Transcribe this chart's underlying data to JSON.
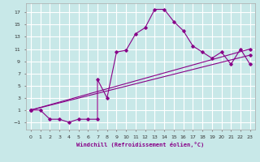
{
  "background_color": "#c8e8e8",
  "grid_color": "#ffffff",
  "line_color": "#880088",
  "xlabel": "Windchill (Refroidissement éolien,°C)",
  "xlim": [
    -0.5,
    23.5
  ],
  "ylim": [
    -2.2,
    18.5
  ],
  "xticks": [
    0,
    1,
    2,
    3,
    4,
    5,
    6,
    7,
    8,
    9,
    10,
    11,
    12,
    13,
    14,
    15,
    16,
    17,
    18,
    19,
    20,
    21,
    22,
    23
  ],
  "yticks": [
    -1,
    1,
    3,
    5,
    7,
    9,
    11,
    13,
    15,
    17
  ],
  "curve1_x": [
    0,
    1,
    2,
    3,
    4,
    5,
    6,
    7,
    7,
    8,
    9,
    10,
    11,
    12,
    13,
    14,
    15,
    16,
    17,
    18,
    19,
    20,
    21,
    22,
    23
  ],
  "curve1_y": [
    1,
    1,
    -0.5,
    -0.5,
    -1,
    -0.5,
    -0.5,
    -0.5,
    6,
    3,
    10.5,
    10.8,
    13.5,
    14.5,
    17.5,
    17.5,
    15.5,
    14,
    11.5,
    10.5,
    9.5,
    10.5,
    8.5,
    11,
    8.5
  ],
  "curve2_x": [
    0,
    23
  ],
  "curve2_y": [
    1,
    11
  ],
  "curve3_x": [
    0,
    23
  ],
  "curve3_y": [
    1,
    10
  ]
}
